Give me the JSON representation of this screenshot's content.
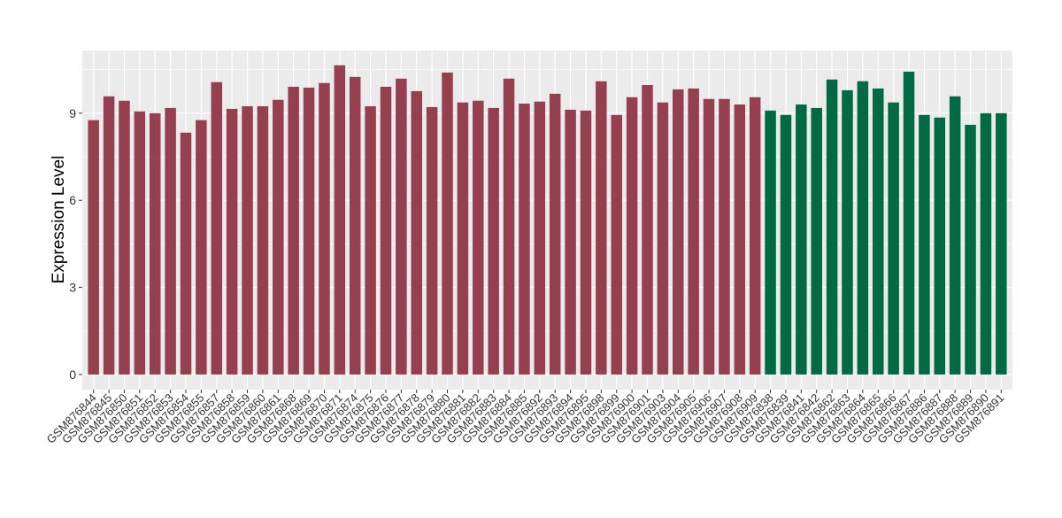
{
  "chart_data": {
    "type": "bar",
    "y_label": "Expression Level",
    "categories": [
      "GSM876844",
      "GSM876845",
      "GSM876850",
      "GSM876851",
      "GSM876852",
      "GSM876853",
      "GSM876854",
      "GSM876855",
      "GSM876857",
      "GSM876858",
      "GSM876859",
      "GSM876860",
      "GSM876861",
      "GSM876868",
      "GSM876869",
      "GSM876870",
      "GSM876871",
      "GSM876874",
      "GSM876875",
      "GSM876876",
      "GSM876877",
      "GSM876878",
      "GSM876879",
      "GSM876880",
      "GSM876881",
      "GSM876882",
      "GSM876883",
      "GSM876884",
      "GSM876885",
      "GSM876892",
      "GSM876893",
      "GSM876894",
      "GSM876895",
      "GSM876898",
      "GSM876899",
      "GSM876900",
      "GSM876901",
      "GSM876903",
      "GSM876904",
      "GSM876905",
      "GSM876906",
      "GSM876907",
      "GSM876908",
      "GSM876909",
      "GSM876838",
      "GSM876839",
      "GSM876841",
      "GSM876842",
      "GSM876862",
      "GSM876863",
      "GSM876864",
      "GSM876865",
      "GSM876866",
      "GSM876867",
      "GSM876886",
      "GSM876887",
      "GSM876888",
      "GSM876889",
      "GSM876890",
      "GSM876891"
    ],
    "values": [
      8.76,
      9.58,
      9.43,
      9.06,
      9.0,
      9.18,
      8.33,
      8.76,
      10.07,
      9.15,
      9.24,
      9.24,
      9.46,
      9.91,
      9.88,
      10.04,
      10.65,
      10.25,
      9.24,
      9.91,
      10.19,
      9.76,
      9.21,
      10.4,
      9.37,
      9.43,
      9.18,
      10.19,
      9.33,
      9.4,
      9.67,
      9.12,
      9.09,
      10.1,
      8.94,
      9.55,
      9.97,
      9.37,
      9.82,
      9.85,
      9.49,
      9.49,
      9.3,
      9.55,
      9.09,
      8.94,
      9.3,
      9.18,
      10.16,
      9.79,
      10.1,
      9.85,
      9.37,
      10.43,
      8.94,
      8.85,
      9.58,
      8.6,
      9.0,
      9.0
    ],
    "colors": [
      "#96404f",
      "#96404f",
      "#96404f",
      "#96404f",
      "#96404f",
      "#96404f",
      "#96404f",
      "#96404f",
      "#96404f",
      "#96404f",
      "#96404f",
      "#96404f",
      "#96404f",
      "#96404f",
      "#96404f",
      "#96404f",
      "#96404f",
      "#96404f",
      "#96404f",
      "#96404f",
      "#96404f",
      "#96404f",
      "#96404f",
      "#96404f",
      "#96404f",
      "#96404f",
      "#96404f",
      "#96404f",
      "#96404f",
      "#96404f",
      "#96404f",
      "#96404f",
      "#96404f",
      "#96404f",
      "#96404f",
      "#96404f",
      "#96404f",
      "#96404f",
      "#96404f",
      "#96404f",
      "#96404f",
      "#96404f",
      "#96404f",
      "#96404f",
      "#006a44",
      "#006a44",
      "#006a44",
      "#006a44",
      "#006a44",
      "#006a44",
      "#006a44",
      "#006a44",
      "#006a44",
      "#006a44",
      "#006a44",
      "#006a44",
      "#006a44",
      "#006a44",
      "#006a44",
      "#006a44"
    ],
    "ylim": [
      -0.52,
      11.16
    ],
    "yticks": [
      0,
      3,
      6,
      9
    ],
    "grid": true
  }
}
